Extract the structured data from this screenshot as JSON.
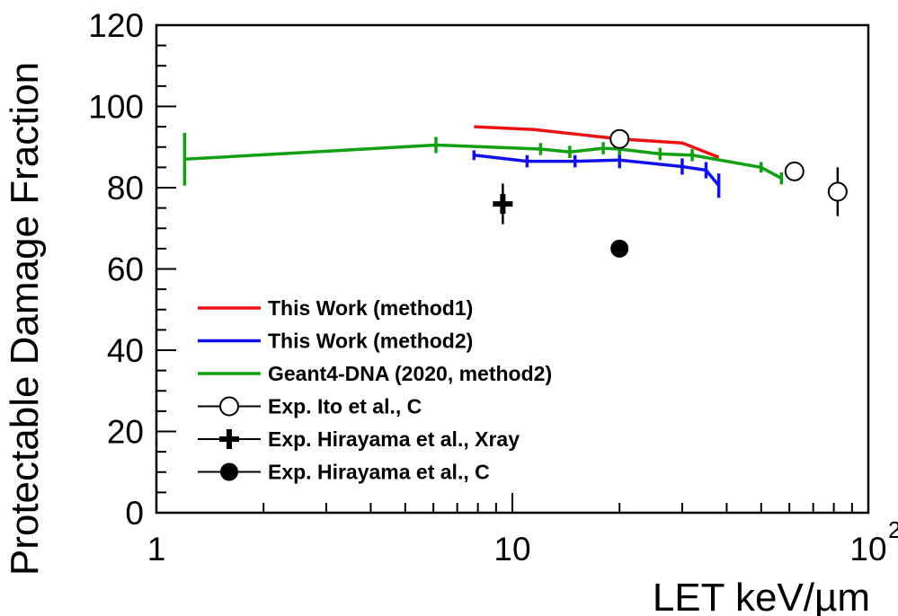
{
  "chart_data": {
    "type": "line",
    "xlabel": "LET keV/µm",
    "ylabel": "Protectable Damage Fraction",
    "xscale": "log",
    "xlim": [
      1,
      100
    ],
    "ylim": [
      0,
      120
    ],
    "x_tick_labels": [
      {
        "value": 1,
        "label": "1"
      },
      {
        "value": 10,
        "label": "10"
      },
      {
        "value": 100,
        "label": "10",
        "sup": "2"
      }
    ],
    "y_ticks": [
      0,
      20,
      40,
      60,
      80,
      100,
      120
    ],
    "grid": false,
    "legend_position": "bottom-left",
    "series": [
      {
        "name": "This Work (method1)",
        "color": "#ee1111",
        "style": "line",
        "x": [
          7.8,
          11.5,
          20,
          30,
          38
        ],
        "y": [
          95,
          94.3,
          92,
          91,
          87.5
        ]
      },
      {
        "name": "This Work (method2)",
        "color": "#1111ee",
        "style": "line",
        "x": [
          7.8,
          11,
          15,
          20,
          30,
          35,
          38
        ],
        "y": [
          88,
          86.5,
          86.5,
          86.8,
          85.2,
          84.3,
          80.5
        ],
        "yerr": [
          1.2,
          1.5,
          1.5,
          2.0,
          2.0,
          2.0,
          3.0
        ]
      },
      {
        "name": "Geant4-DNA (2020, method2)",
        "color": "#11a011",
        "style": "line",
        "x": [
          1.2,
          6.1,
          12,
          14.5,
          18,
          20,
          26,
          32,
          50,
          57
        ],
        "y": [
          87,
          90.5,
          89.5,
          88.8,
          89.7,
          89.5,
          88.3,
          88,
          85,
          82.3
        ],
        "yerr": [
          6.5,
          2,
          1.5,
          1.5,
          1.5,
          1.5,
          1.5,
          1.5,
          1.3,
          1.5
        ]
      },
      {
        "name": "Exp. Ito et al., C",
        "color": "#000000",
        "style": "open-circle",
        "x": [
          20,
          62,
          82
        ],
        "y": [
          92,
          84,
          79
        ],
        "yerr": [
          0,
          0,
          6
        ]
      },
      {
        "name": "Exp. Hirayama et al., Xray",
        "color": "#000000",
        "style": "cross",
        "x": [
          9.4
        ],
        "y": [
          76
        ],
        "yerr": [
          5
        ]
      },
      {
        "name": "Exp. Hirayama et al., C",
        "color": "#000000",
        "style": "filled-circle",
        "x": [
          20
        ],
        "y": [
          65
        ],
        "yerr": [
          0
        ]
      }
    ]
  }
}
